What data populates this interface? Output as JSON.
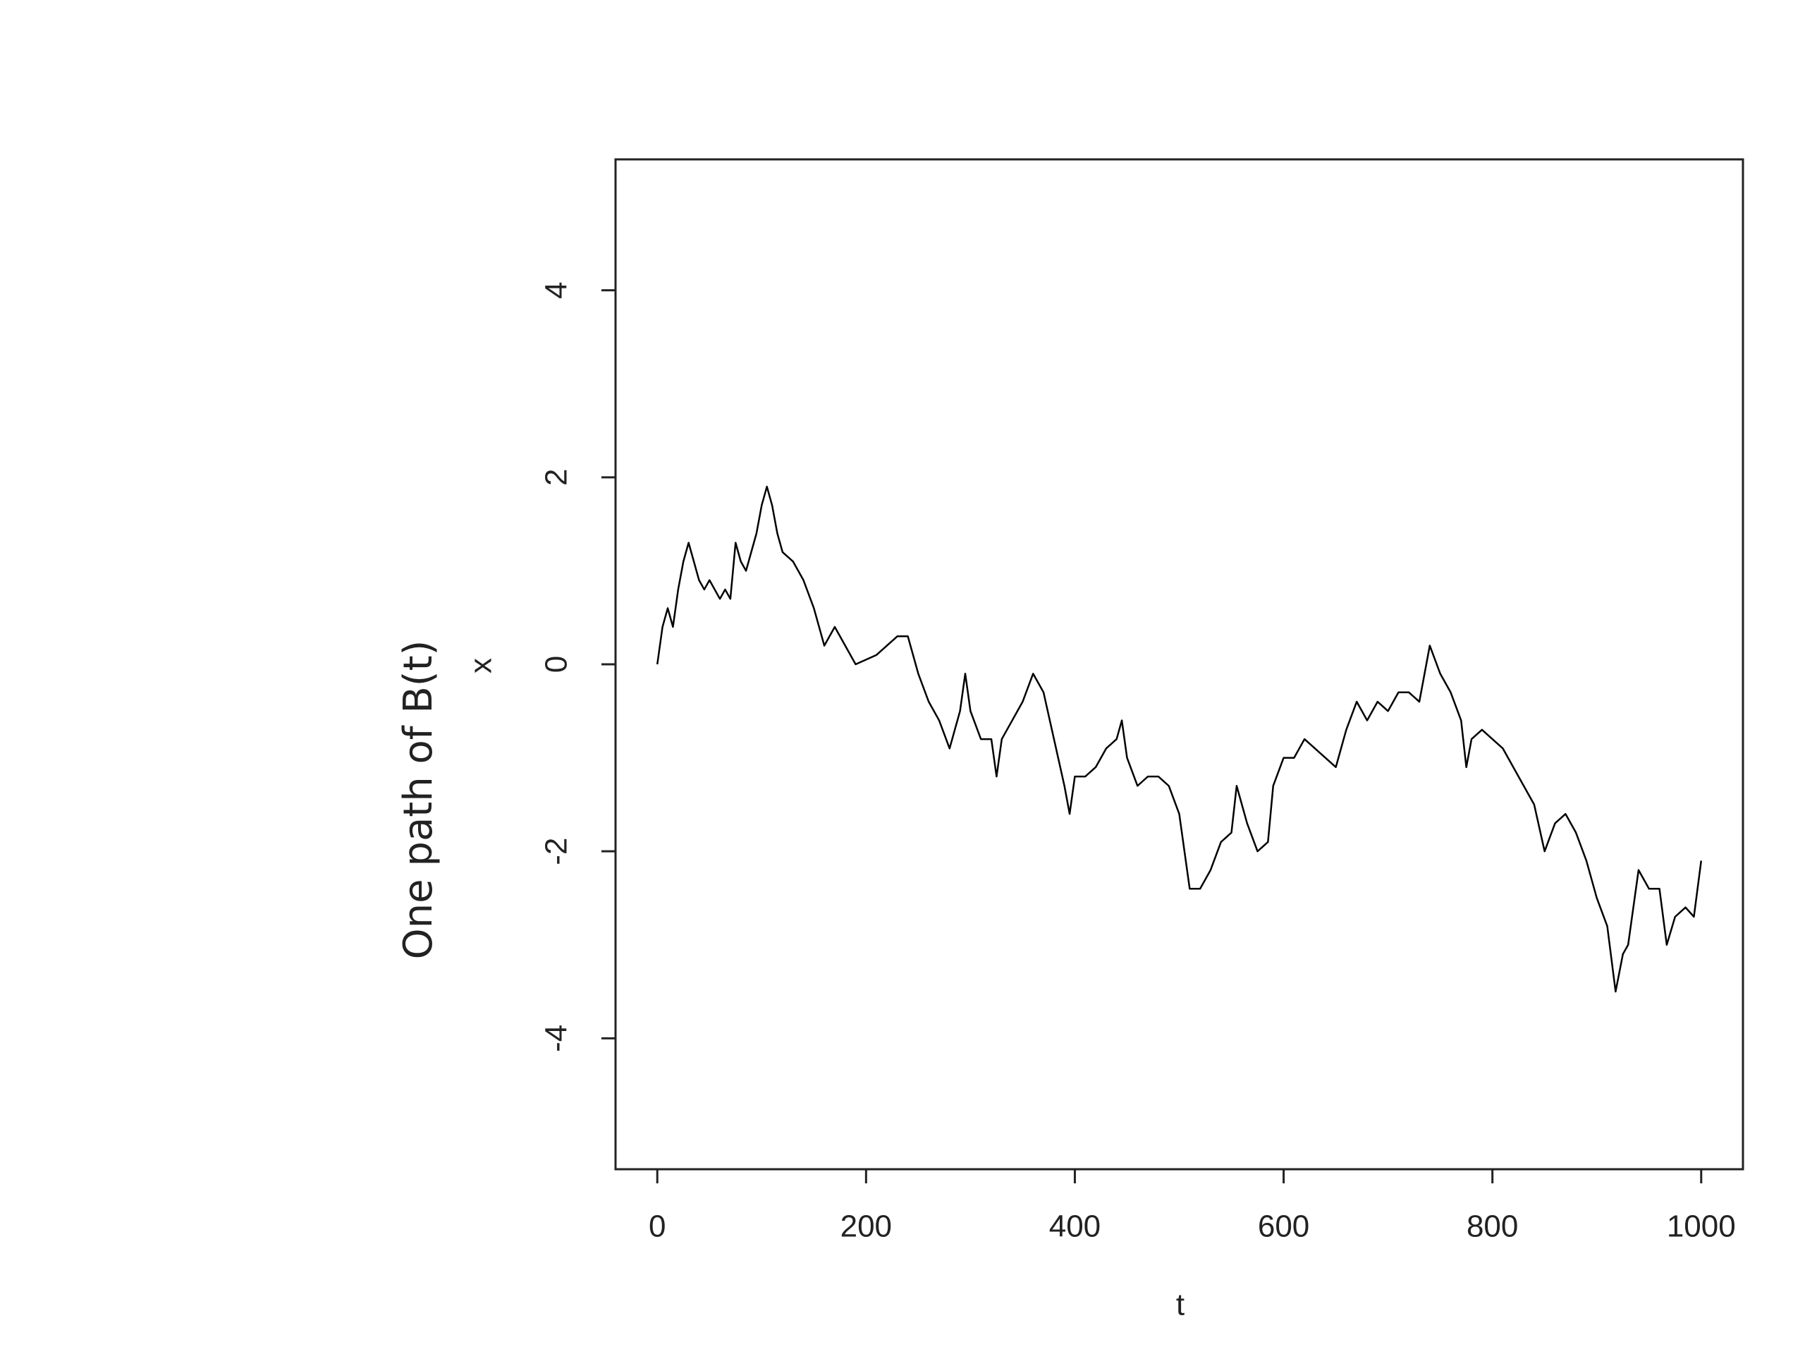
{
  "chart_data": {
    "type": "line",
    "annotation": "One path of B(t)",
    "x_label": "t",
    "y_label": "x",
    "x": [
      0,
      5,
      10,
      15,
      20,
      25,
      30,
      35,
      40,
      45,
      50,
      55,
      60,
      65,
      70,
      75,
      80,
      85,
      90,
      95,
      100,
      105,
      110,
      115,
      120,
      130,
      140,
      150,
      160,
      170,
      180,
      190,
      200,
      210,
      220,
      230,
      240,
      250,
      260,
      270,
      280,
      290,
      295,
      300,
      310,
      320,
      325,
      330,
      340,
      350,
      360,
      370,
      380,
      390,
      395,
      400,
      410,
      420,
      430,
      440,
      445,
      450,
      460,
      470,
      480,
      490,
      500,
      510,
      520,
      530,
      540,
      550,
      555,
      565,
      575,
      585,
      590,
      600,
      610,
      620,
      630,
      640,
      650,
      660,
      670,
      680,
      690,
      700,
      710,
      720,
      730,
      740,
      750,
      760,
      770,
      775,
      780,
      790,
      800,
      810,
      820,
      830,
      840,
      850,
      860,
      870,
      880,
      890,
      900,
      910,
      918,
      925,
      930,
      940,
      950,
      960,
      967,
      975,
      985,
      993,
      1000
    ],
    "values": [
      0,
      0.4,
      0.6,
      0.4,
      0.8,
      1.1,
      1.3,
      1.1,
      0.9,
      0.8,
      0.9,
      0.8,
      0.7,
      0.8,
      0.7,
      1.3,
      1.1,
      1.0,
      1.2,
      1.4,
      1.7,
      1.9,
      1.7,
      1.4,
      1.2,
      1.1,
      0.9,
      0.6,
      0.2,
      0.4,
      0.2,
      0.0,
      0.05,
      0.1,
      0.2,
      0.3,
      0.3,
      -0.1,
      -0.4,
      -0.6,
      -0.9,
      -0.5,
      -0.1,
      -0.5,
      -0.8,
      -0.8,
      -1.2,
      -0.8,
      -0.6,
      -0.4,
      -0.1,
      -0.3,
      -0.8,
      -1.3,
      -1.6,
      -1.2,
      -1.2,
      -1.1,
      -0.9,
      -0.8,
      -0.6,
      -1.0,
      -1.3,
      -1.2,
      -1.2,
      -1.3,
      -1.6,
      -2.4,
      -2.4,
      -2.2,
      -1.9,
      -1.8,
      -1.3,
      -1.7,
      -2.0,
      -1.9,
      -1.3,
      -1.0,
      -1.0,
      -0.8,
      -0.9,
      -1.0,
      -1.1,
      -0.7,
      -0.4,
      -0.6,
      -0.4,
      -0.5,
      -0.3,
      -0.3,
      -0.4,
      0.2,
      -0.1,
      -0.3,
      -0.6,
      -1.1,
      -0.8,
      -0.7,
      -0.8,
      -0.9,
      -1.1,
      -1.3,
      -1.5,
      -2.0,
      -1.7,
      -1.6,
      -1.8,
      -2.1,
      -2.5,
      -2.8,
      -3.5,
      -3.1,
      -3.0,
      -2.2,
      -2.4,
      -2.4,
      -3.0,
      -2.7,
      -2.6,
      -2.7,
      -2.1
    ],
    "color": "#000000",
    "xlim": [
      -40,
      1040
    ],
    "ylim": [
      -5.4,
      5.4
    ],
    "xticks": [
      0,
      200,
      400,
      600,
      800,
      1000
    ],
    "yticks": [
      -4,
      -2,
      0,
      2,
      4
    ]
  }
}
